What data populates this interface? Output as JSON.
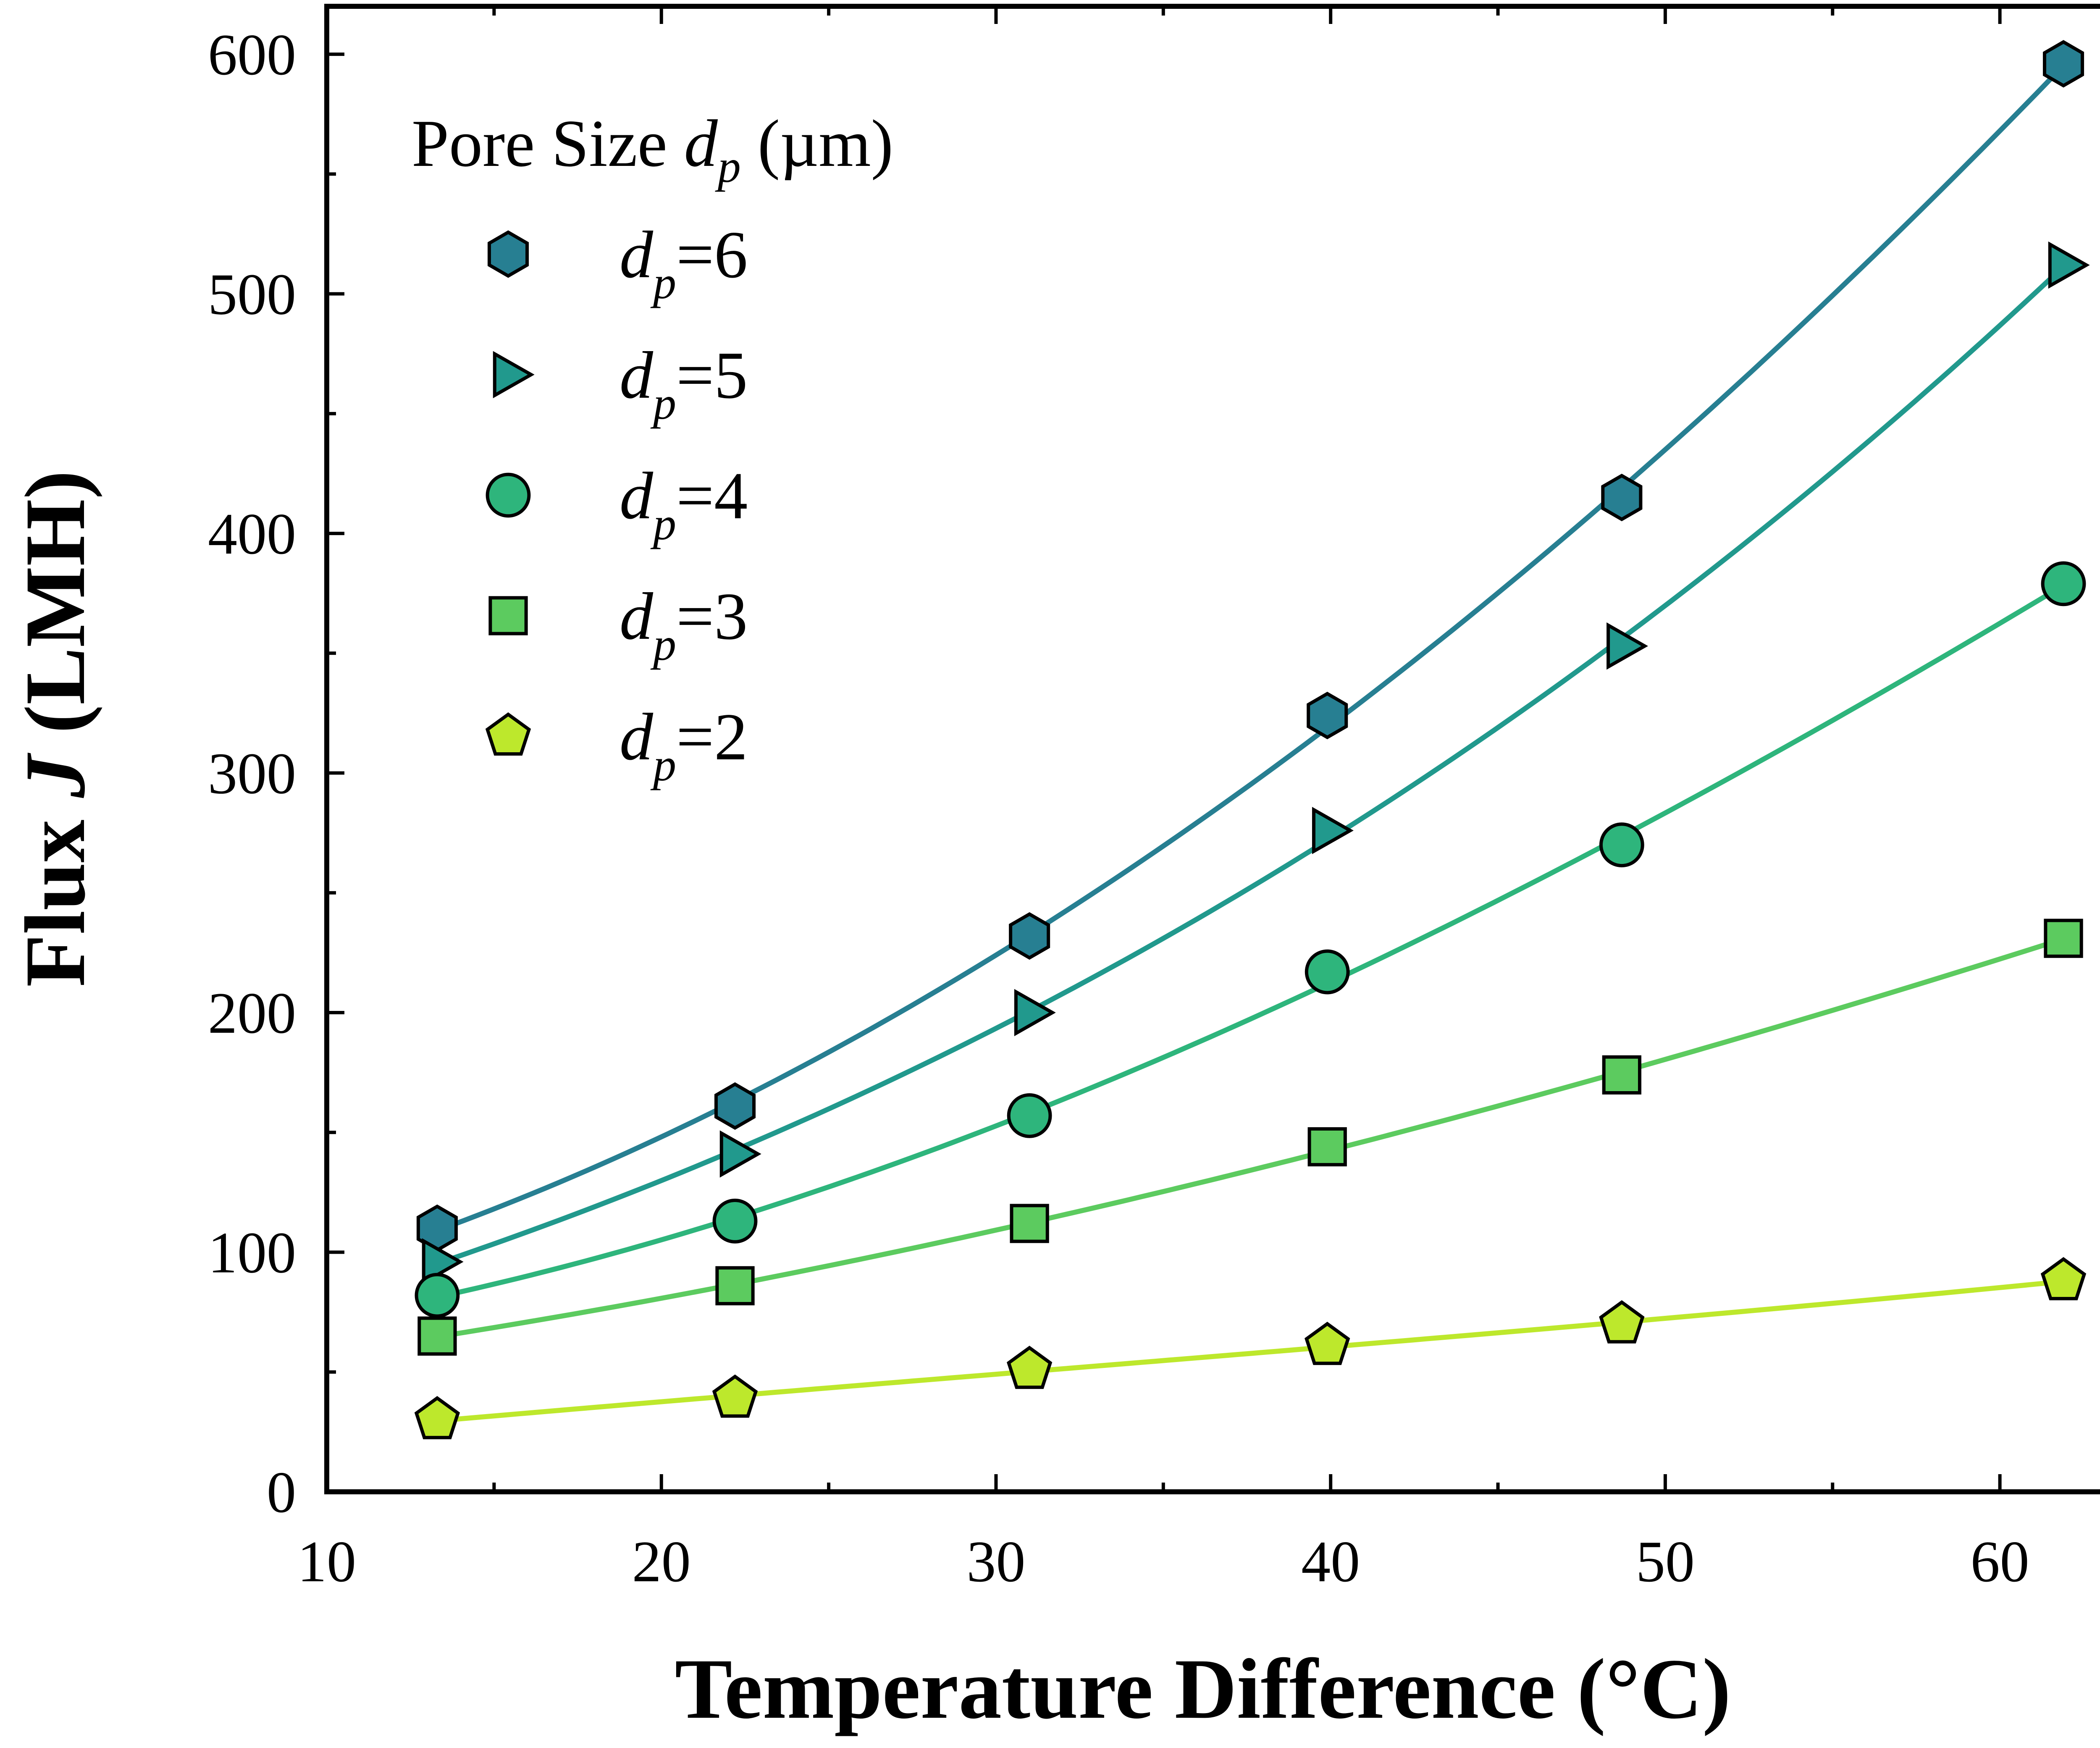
{
  "chart_data": {
    "type": "line",
    "title": "",
    "xlabel": "Temperature Difference (°C)",
    "ylabel_prefix": "Flux ",
    "ylabel_symbol": "J",
    "ylabel_suffix": " (LMH)",
    "xlim": [
      10,
      65
    ],
    "ylim": [
      0,
      620
    ],
    "x_ticks": [
      10,
      20,
      30,
      40,
      50,
      60
    ],
    "y_ticks": [
      0,
      100,
      200,
      300,
      400,
      500,
      600
    ],
    "x_tick_labels": [
      "10",
      "20",
      "30",
      "40",
      "50",
      "60"
    ],
    "y_tick_labels": [
      "0",
      "100",
      "200",
      "300",
      "400",
      "500",
      "600"
    ],
    "x_minor_step": 5,
    "y_minor_step": 50,
    "legend": {
      "position": "top-left",
      "title_prefix": "Pore Size ",
      "title_symbol": "d",
      "title_sub": "p",
      "title_suffix": " (µm)"
    },
    "x": [
      13.3,
      22.2,
      31.0,
      39.9,
      48.7,
      61.9
    ],
    "series": [
      {
        "name": "dp=6",
        "label_symbol": "d",
        "label_sub": "p",
        "label_value": "=6",
        "marker": "hexagon",
        "color": "#277f92",
        "values": [
          110,
          161,
          232,
          324,
          415,
          596
        ]
      },
      {
        "name": "dp=5",
        "label_symbol": "d",
        "label_sub": "p",
        "label_value": "=5",
        "marker": "triangle-right",
        "color": "#21998d",
        "values": [
          96,
          141,
          200,
          276,
          353,
          512
        ]
      },
      {
        "name": "dp=4",
        "label_symbol": "d",
        "label_sub": "p",
        "label_value": "=4",
        "marker": "circle",
        "color": "#2eb57c",
        "values": [
          82,
          113,
          157,
          217,
          270,
          379
        ]
      },
      {
        "name": "dp=3",
        "label_symbol": "d",
        "label_sub": "p",
        "label_value": "=3",
        "marker": "square",
        "color": "#5ccb5f",
        "values": [
          65,
          86,
          112,
          144,
          174,
          231
        ]
      },
      {
        "name": "dp=2",
        "label_symbol": "d",
        "label_sub": "p",
        "label_value": "=2",
        "marker": "pentagon",
        "color": "#bde82c",
        "values": [
          30,
          39,
          51,
          61,
          70,
          88
        ]
      }
    ]
  }
}
